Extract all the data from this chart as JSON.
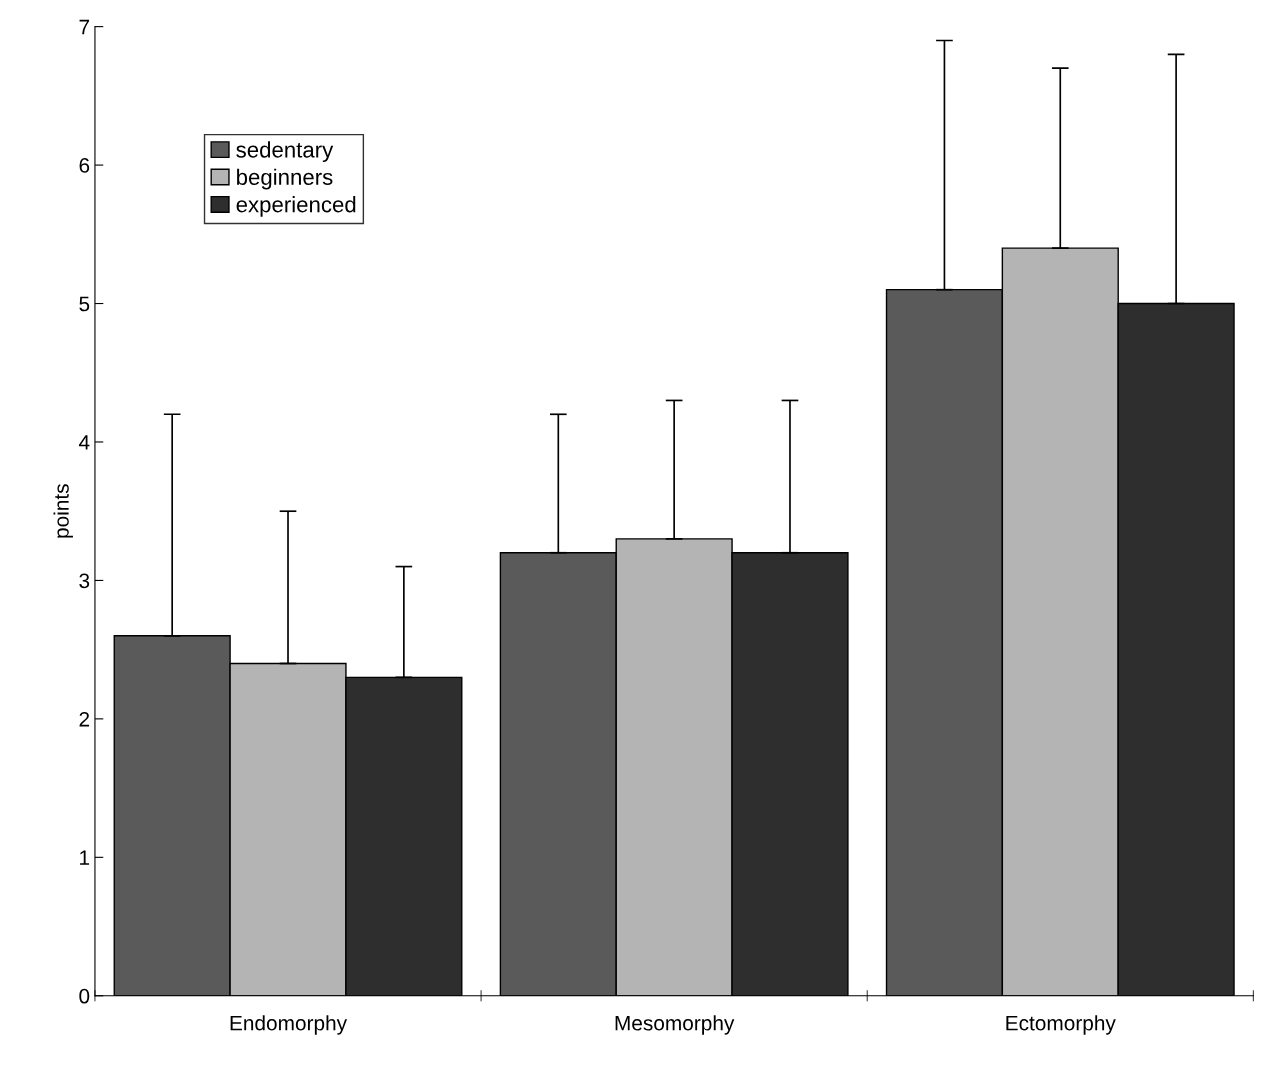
{
  "chart_data": {
    "type": "bar",
    "ylabel": "points",
    "categories": [
      "Endomorphy",
      "Mesomorphy",
      "Ectomorphy"
    ],
    "series": [
      {
        "name": "sedentary",
        "color": "#5a5a5a",
        "values": [
          2.6,
          3.2,
          5.1
        ],
        "errors": [
          [
            2.6,
            4.2
          ],
          [
            3.2,
            4.2
          ],
          [
            5.1,
            6.9
          ]
        ]
      },
      {
        "name": "beginners",
        "color": "#b4b4b4",
        "values": [
          2.4,
          3.3,
          5.4
        ],
        "errors": [
          [
            2.4,
            3.5
          ],
          [
            3.3,
            4.3
          ],
          [
            5.4,
            6.7
          ]
        ]
      },
      {
        "name": "experienced",
        "color": "#2e2e2e",
        "values": [
          2.3,
          3.2,
          5.0
        ],
        "errors": [
          [
            2.3,
            3.1
          ],
          [
            3.2,
            4.3
          ],
          [
            5.0,
            6.8
          ]
        ]
      }
    ],
    "ylim": [
      0,
      7
    ],
    "yticks": [
      0,
      1,
      2,
      3,
      4,
      5,
      6,
      7
    ],
    "grid": false,
    "legend": "top left"
  }
}
